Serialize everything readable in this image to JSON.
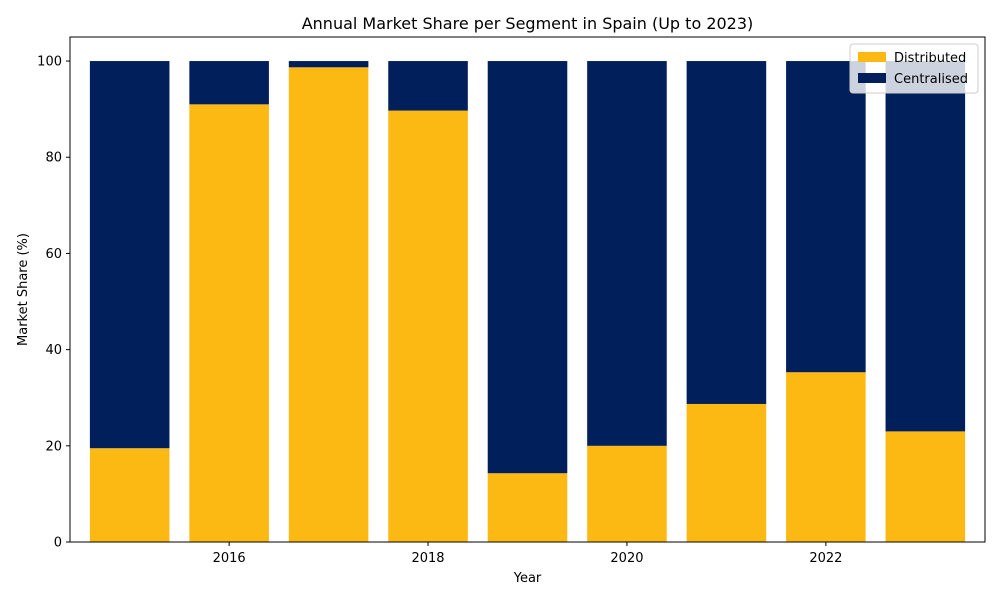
{
  "chart_data": {
    "type": "bar",
    "stacked": true,
    "title": "Annual Market Share per Segment in Spain (Up to 2023)",
    "xlabel": "Year",
    "ylabel": "Market Share (%)",
    "categories": [
      2015,
      2016,
      2017,
      2018,
      2019,
      2020,
      2021,
      2022,
      2023
    ],
    "x_ticks": [
      2016,
      2018,
      2020,
      2022
    ],
    "y_ticks": [
      0,
      20,
      40,
      60,
      80,
      100
    ],
    "xlim": [
      2014.4,
      2023.6
    ],
    "ylim": [
      0,
      105
    ],
    "series": [
      {
        "name": "Distributed",
        "color": "#fdb913",
        "values": [
          19.5,
          91.0,
          98.7,
          89.7,
          14.3,
          20.0,
          28.7,
          35.3,
          23.0
        ]
      },
      {
        "name": "Centralised",
        "color": "#001f5b",
        "values": [
          80.5,
          9.0,
          1.3,
          10.3,
          85.7,
          80.0,
          71.3,
          64.7,
          77.0
        ]
      }
    ],
    "legend": "top-right",
    "grid": false
  }
}
